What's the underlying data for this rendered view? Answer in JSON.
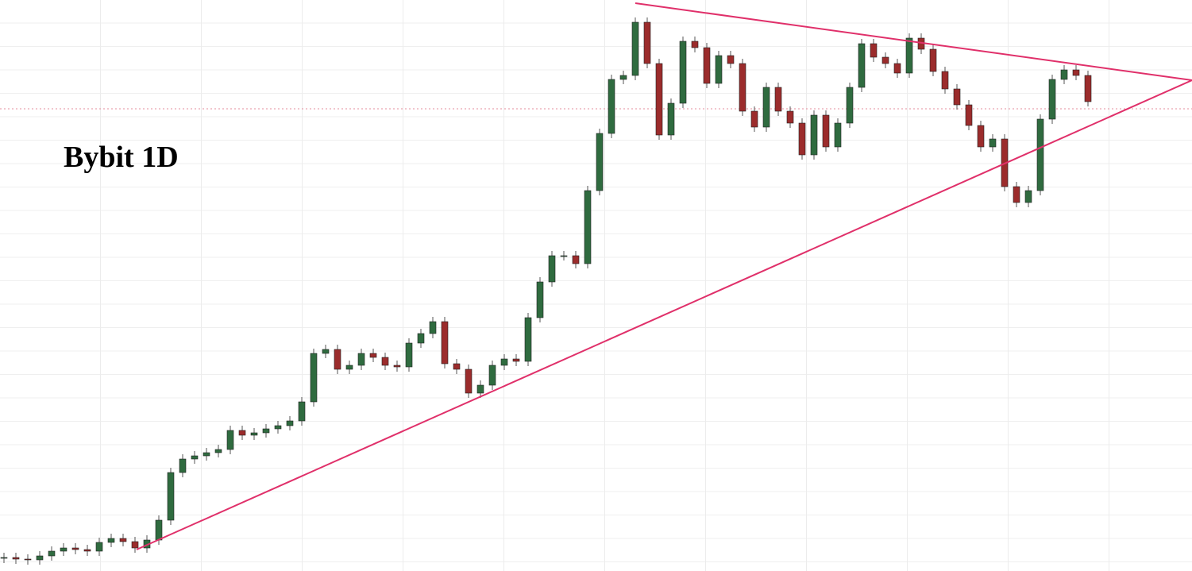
{
  "chart_data": {
    "type": "candlestick",
    "title": "Bybit 1D",
    "ylim": [
      0,
      719
    ],
    "up_color": "#2f6b3f",
    "down_color": "#9b2c2c",
    "open": [
      16,
      17,
      15,
      14,
      19,
      25,
      29,
      27,
      25,
      36,
      41,
      37,
      29,
      39,
      64,
      124,
      141,
      145,
      149,
      153,
      177,
      171,
      174,
      179,
      183,
      189,
      213,
      274,
      279,
      254,
      259,
      274,
      269,
      259,
      257,
      287,
      299,
      314,
      261,
      254,
      224,
      234,
      259,
      267,
      264,
      319,
      364,
      397,
      397,
      387,
      479,
      551,
      619,
      624,
      691,
      639,
      549,
      589,
      667,
      659,
      614,
      649,
      639,
      579,
      559,
      609,
      579,
      564,
      524,
      574,
      534,
      564,
      609,
      664,
      647,
      639,
      627,
      671,
      657,
      629,
      607,
      587,
      561,
      534,
      544,
      484,
      464,
      479,
      569,
      619,
      631,
      624
    ],
    "high": [
      23,
      23,
      21,
      25,
      31,
      35,
      35,
      33,
      42,
      47,
      47,
      43,
      45,
      70,
      130,
      147,
      151,
      155,
      159,
      183,
      183,
      180,
      185,
      189,
      195,
      219,
      280,
      285,
      285,
      265,
      280,
      280,
      275,
      265,
      293,
      305,
      320,
      320,
      267,
      260,
      240,
      265,
      273,
      273,
      325,
      370,
      403,
      403,
      403,
      485,
      557,
      625,
      630,
      697,
      697,
      645,
      595,
      673,
      673,
      665,
      655,
      655,
      645,
      585,
      615,
      615,
      585,
      570,
      580,
      580,
      570,
      615,
      670,
      670,
      653,
      645,
      677,
      677,
      663,
      635,
      613,
      593,
      567,
      550,
      550,
      490,
      485,
      575,
      625,
      637,
      637,
      630
    ],
    "low": [
      10,
      9,
      8,
      8,
      13,
      19,
      21,
      19,
      19,
      30,
      31,
      23,
      23,
      33,
      58,
      118,
      135,
      139,
      143,
      147,
      165,
      165,
      168,
      173,
      177,
      183,
      207,
      268,
      248,
      248,
      253,
      263,
      253,
      251,
      251,
      281,
      293,
      255,
      248,
      218,
      218,
      228,
      253,
      258,
      258,
      313,
      358,
      391,
      381,
      381,
      473,
      545,
      613,
      618,
      633,
      543,
      543,
      583,
      653,
      608,
      608,
      633,
      573,
      553,
      553,
      573,
      558,
      518,
      518,
      528,
      528,
      558,
      603,
      641,
      633,
      621,
      621,
      651,
      623,
      601,
      581,
      555,
      528,
      528,
      478,
      458,
      458,
      473,
      563,
      613,
      618,
      585
    ],
    "close": [
      17,
      15,
      14,
      19,
      25,
      29,
      27,
      25,
      36,
      41,
      37,
      29,
      39,
      64,
      124,
      141,
      145,
      149,
      153,
      177,
      171,
      174,
      179,
      183,
      189,
      213,
      274,
      279,
      254,
      259,
      274,
      269,
      259,
      257,
      287,
      299,
      314,
      261,
      254,
      224,
      234,
      259,
      267,
      264,
      319,
      364,
      397,
      397,
      387,
      479,
      551,
      619,
      624,
      691,
      639,
      549,
      589,
      667,
      659,
      614,
      649,
      639,
      579,
      559,
      609,
      579,
      564,
      524,
      574,
      534,
      564,
      609,
      664,
      647,
      639,
      627,
      671,
      657,
      629,
      607,
      587,
      561,
      534,
      544,
      484,
      464,
      479,
      569,
      619,
      631,
      624,
      591
    ]
  }
}
